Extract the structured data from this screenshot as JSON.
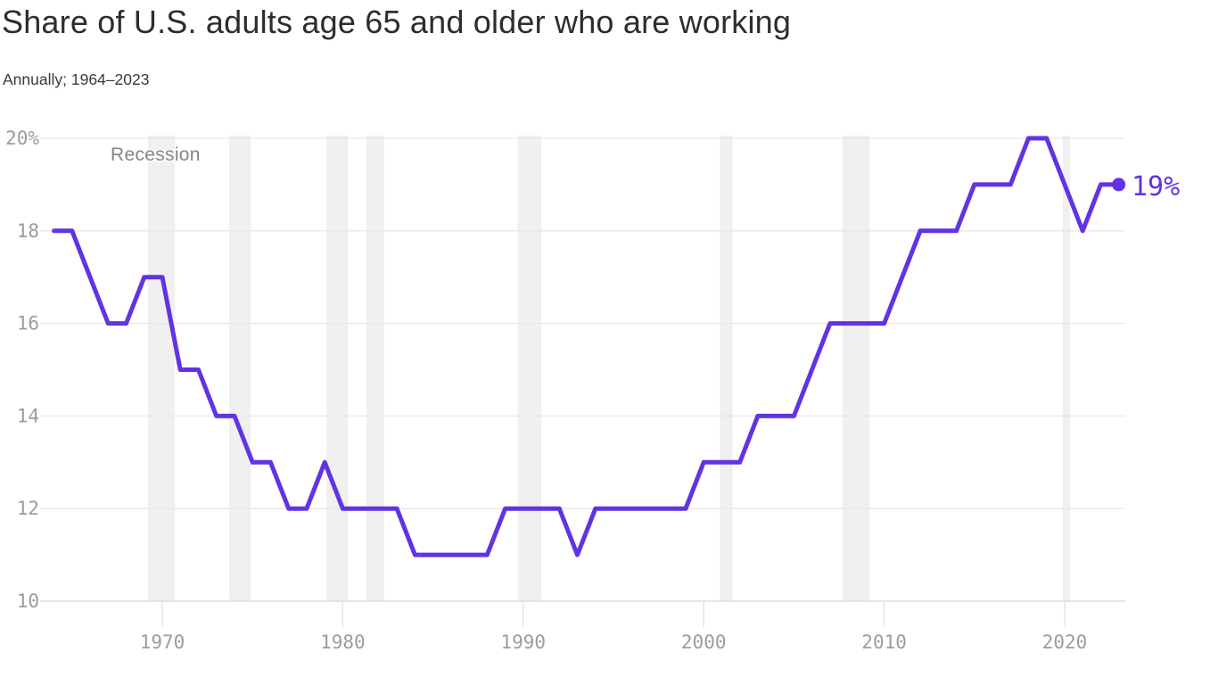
{
  "chart_data": {
    "type": "line",
    "title": "Share of U.S. adults age 65 and older who are working",
    "subtitle": "Annually; 1964–2023",
    "series_name": "Share of U.S. adults age 65 and older who are working (%)",
    "unit": "%",
    "x": [
      1964,
      1965,
      1966,
      1967,
      1968,
      1969,
      1970,
      1971,
      1972,
      1973,
      1974,
      1975,
      1976,
      1977,
      1978,
      1979,
      1980,
      1981,
      1982,
      1983,
      1984,
      1985,
      1986,
      1987,
      1988,
      1989,
      1990,
      1991,
      1992,
      1993,
      1994,
      1995,
      1996,
      1997,
      1998,
      1999,
      2000,
      2001,
      2002,
      2003,
      2004,
      2005,
      2006,
      2007,
      2008,
      2009,
      2010,
      2011,
      2012,
      2013,
      2014,
      2015,
      2016,
      2017,
      2018,
      2019,
      2020,
      2021,
      2022,
      2023
    ],
    "values": [
      18,
      18,
      17,
      16,
      16,
      17,
      17,
      15,
      15,
      14,
      14,
      13,
      13,
      12,
      12,
      13,
      12,
      12,
      12,
      12,
      11,
      11,
      11,
      11,
      11,
      12,
      12,
      12,
      12,
      11,
      12,
      12,
      12,
      12,
      12,
      12,
      13,
      13,
      13,
      14,
      14,
      14,
      15,
      16,
      16,
      16,
      16,
      17,
      18,
      18,
      18,
      19,
      19,
      19,
      20,
      20,
      19,
      18,
      19,
      19
    ],
    "xlim": [
      1963.2,
      2023.4
    ],
    "ylim": [
      10,
      20
    ],
    "xticks": [
      1970,
      1980,
      1990,
      2000,
      2010,
      2020
    ],
    "yticks": [
      {
        "v": 10,
        "label": "10"
      },
      {
        "v": 12,
        "label": "12"
      },
      {
        "v": 14,
        "label": "14"
      },
      {
        "v": 16,
        "label": "16"
      },
      {
        "v": 18,
        "label": "18"
      },
      {
        "v": 20,
        "label": "20%"
      }
    ],
    "grid": "horizontal",
    "legend": "none",
    "recession_bands": [
      [
        1969.2,
        1970.7
      ],
      [
        1973.7,
        1974.9
      ],
      [
        1979.1,
        1980.3
      ],
      [
        1981.3,
        1982.3
      ],
      [
        1989.7,
        1991.0
      ],
      [
        2000.9,
        2001.6
      ],
      [
        2007.7,
        2009.2
      ],
      [
        2019.9,
        2020.3
      ]
    ],
    "annotations": {
      "recession_label": "Recession",
      "end_label": "19%",
      "end_point": {
        "x": 2023,
        "value": 19
      }
    },
    "colors": {
      "line": "#6233e4",
      "recession_band": "#f0f0f0",
      "grid": "#e7e7e7",
      "axis": "#d8d8d8",
      "tick_mark": "#e0e0e0",
      "tick_text": "#9c9c9c",
      "annotation_text": "#858585",
      "title_text": "#2d2d2d",
      "end_label": "#6233e4"
    }
  }
}
